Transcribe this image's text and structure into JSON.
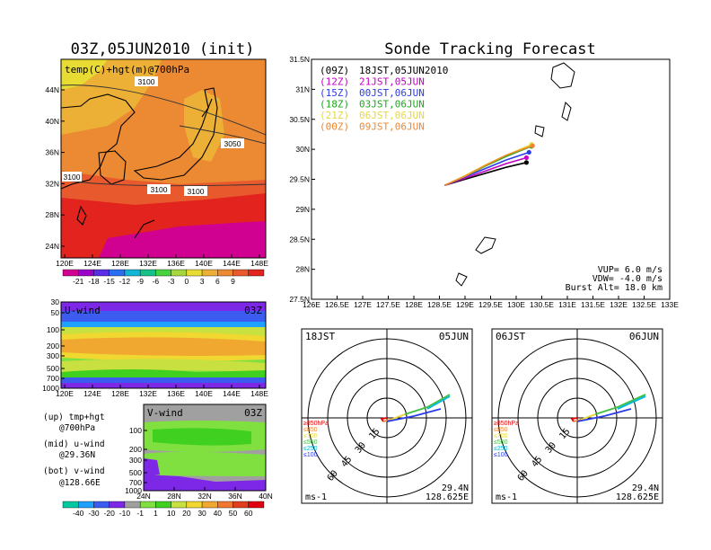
{
  "colors": {
    "temp_scale": [
      "#d00090",
      "#9a00c8",
      "#5a2ee6",
      "#2a6ff0",
      "#11b5d6",
      "#16c28a",
      "#48d23c",
      "#a6d640",
      "#e8dc34",
      "#ecb036",
      "#ec8a34",
      "#e85a2e",
      "#e2231e"
    ],
    "wind_scale": [
      "#00c8a0",
      "#1ea0ff",
      "#3c5cf0",
      "#7c28e6",
      "#a0a0a0",
      "#80e040",
      "#40d020",
      "#c8e040",
      "#f0d830",
      "#f0a830",
      "#f07830",
      "#e04020",
      "#e00010"
    ],
    "track_09z": "#000000",
    "track_12z": "#c000c0",
    "track_15z": "#2a3ce8",
    "track_18z": "#1aa81a",
    "track_21z": "#e8d83a",
    "track_00z": "#ee8830"
  },
  "map_panel": {
    "title": "03Z,05JUN2010 (init)",
    "label": "temp(C)+hgt(m)@700hPa",
    "contours": [
      "3100",
      "3050",
      "3100",
      "3100",
      "3100"
    ],
    "lat_ticks": [
      "44N",
      "40N",
      "36N",
      "32N",
      "28N",
      "24N"
    ],
    "lon_ticks": [
      "120E",
      "124E",
      "128E",
      "132E",
      "136E",
      "140E",
      "144E",
      "148E"
    ],
    "colorbar_ticks": [
      "-21",
      "-18",
      "-15",
      "-12",
      "-9",
      "-6",
      "-3",
      "0",
      "3",
      "6",
      "9"
    ]
  },
  "u_panel": {
    "label": "U-wind",
    "time": "03Z",
    "p_ticks": [
      "30",
      "50",
      "100",
      "200",
      "300",
      "500",
      "700",
      "1000"
    ],
    "lon_ticks": [
      "120E",
      "124E",
      "128E",
      "132E",
      "136E",
      "140E",
      "144E",
      "148E"
    ]
  },
  "v_panel": {
    "label": "V-wind",
    "time": "03Z",
    "p_ticks": [
      "100",
      "200",
      "300",
      "500",
      "700",
      "1000"
    ],
    "lat_ticks": [
      "24N",
      "28N",
      "32N",
      "36N",
      "40N"
    ],
    "notes": [
      "(up) tmp+hgt",
      "@700hPa",
      "(mid) u-wind",
      "@29.36N",
      "(bot) v-wind",
      "@128.66E"
    ],
    "colorbar_ticks": [
      "-40",
      "-30",
      "-20",
      "-10",
      "-1",
      "1",
      "10",
      "20",
      "30",
      "40",
      "50",
      "60"
    ]
  },
  "tracking": {
    "title": "Sonde Tracking Forecast",
    "lat_ticks": [
      "31.5N",
      "31N",
      "30.5N",
      "30N",
      "29.5N",
      "29N",
      "28.5N",
      "28N",
      "27.5N"
    ],
    "lon_ticks": [
      "126E",
      "126.5E",
      "127E",
      "127.5E",
      "128E",
      "128.5E",
      "129E",
      "129.5E",
      "130E",
      "130.5E",
      "131E",
      "131.5E",
      "132E",
      "132.5E",
      "133E"
    ],
    "legend": [
      {
        "z": "(09Z)",
        "local": "18JST,05JUN2010",
        "color": "#000000"
      },
      {
        "z": "(12Z)",
        "local": "21JST,05JUN",
        "color": "#c000c0"
      },
      {
        "z": "(15Z)",
        "local": "00JST,06JUN",
        "color": "#2a3ce8"
      },
      {
        "z": "(18Z)",
        "local": "03JST,06JUN",
        "color": "#1aa81a"
      },
      {
        "z": "(21Z)",
        "local": "06JST,06JUN",
        "color": "#e8d83a"
      },
      {
        "z": "(00Z)",
        "local": "09JST,06JUN",
        "color": "#ee8830"
      }
    ],
    "params": [
      "VUP= 6.0 m/s",
      "VDW= -4.0 m/s",
      "Burst Alt= 18.0 km"
    ]
  },
  "chart_data": [
    {
      "type": "line",
      "title": "Sonde Tracking Forecast",
      "xlim": [
        126,
        133
      ],
      "ylim": [
        27.5,
        31.5
      ],
      "series": [
        {
          "name": "(09Z) 18JST,05JUN2010",
          "x": [
            128.6,
            129.0,
            129.4,
            129.8,
            130.2
          ],
          "y": [
            29.4,
            29.5,
            29.6,
            29.7,
            29.78
          ]
        },
        {
          "name": "(12Z) 21JST,05JUN",
          "x": [
            128.6,
            129.0,
            129.4,
            129.8,
            130.2
          ],
          "y": [
            29.4,
            29.52,
            29.64,
            29.76,
            29.86
          ]
        },
        {
          "name": "(15Z) 00JST,06JUN",
          "x": [
            128.6,
            129.0,
            129.4,
            129.8,
            130.25
          ],
          "y": [
            29.4,
            29.54,
            29.68,
            29.82,
            29.95
          ]
        },
        {
          "name": "(18Z) 03JST,06JUN",
          "x": [
            128.6,
            129.0,
            129.4,
            129.8,
            130.3
          ],
          "y": [
            29.4,
            29.55,
            29.72,
            29.88,
            30.05
          ]
        },
        {
          "name": "(21Z) 06JST,06JUN",
          "x": [
            128.6,
            129.0,
            129.4,
            129.8,
            130.3
          ],
          "y": [
            29.4,
            29.56,
            29.74,
            29.9,
            30.08
          ]
        },
        {
          "name": "(00Z) 09JST,06JUN",
          "x": [
            128.6,
            129.0,
            129.4,
            129.8,
            130.32
          ],
          "y": [
            29.4,
            29.55,
            29.73,
            29.9,
            30.06
          ]
        }
      ]
    }
  ],
  "hodo_left": {
    "time": "18JST",
    "date": "05JUN",
    "unit": "ms-1",
    "lat": "29.4N",
    "lon": "128.625E",
    "rings": [
      "15",
      "30",
      "45",
      "60"
    ],
    "levels": [
      {
        "label": "≥850hPa",
        "color": "#e00000"
      },
      {
        "label": "≤850",
        "color": "#ee8830"
      },
      {
        "label": "≤700",
        "color": "#e8d83a"
      },
      {
        "label": "≤500",
        "color": "#40c040"
      },
      {
        "label": "≤250",
        "color": "#00b8e0"
      },
      {
        "label": "≤100",
        "color": "#2a3ce8"
      }
    ]
  },
  "hodo_right": {
    "time": "06JST",
    "date": "06JUN",
    "unit": "ms-1",
    "lat": "29.4N",
    "lon": "128.625E",
    "rings": [
      "15",
      "30",
      "45",
      "60"
    ],
    "levels": [
      {
        "label": "≥850hPa",
        "color": "#e00000"
      },
      {
        "label": "≤850",
        "color": "#ee8830"
      },
      {
        "label": "≤700",
        "color": "#e8d83a"
      },
      {
        "label": "≤500",
        "color": "#40c040"
      },
      {
        "label": "≤250",
        "color": "#00b8e0"
      },
      {
        "label": "≤100",
        "color": "#2a3ce8"
      }
    ]
  }
}
